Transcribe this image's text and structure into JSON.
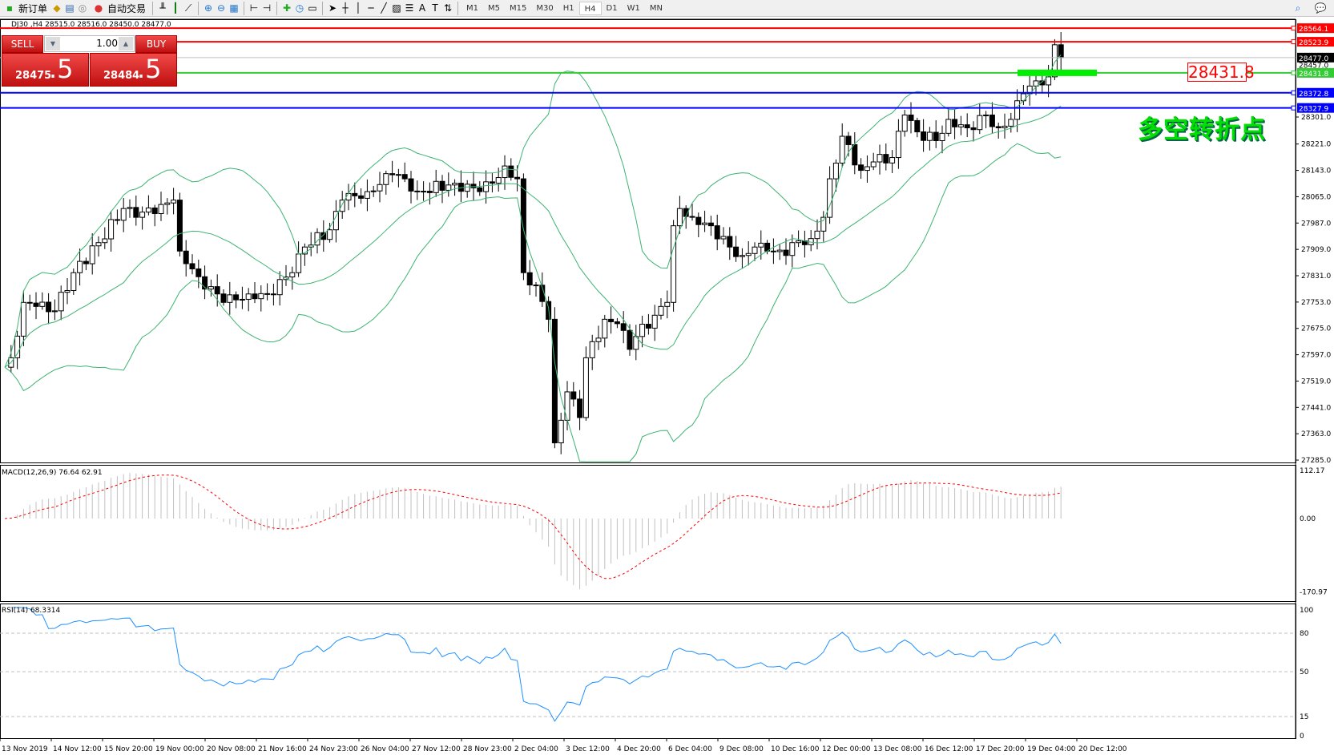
{
  "toolbar": {
    "new_order": "新订单",
    "auto_trading": "自动交易",
    "timeframes": [
      "M1",
      "M5",
      "M15",
      "M30",
      "H1",
      "H4",
      "D1",
      "W1",
      "MN"
    ],
    "active_timeframe": "H4"
  },
  "chart": {
    "title": "DJ30 ,H4  28515.0 28516.0 28450.0 28477.0",
    "one_click": {
      "sell": "SELL",
      "buy": "BUY",
      "lot": "1.00",
      "sell_big": "28475",
      "sell_frac": ".5",
      "buy_big": "28484",
      "buy_frac": ".5"
    },
    "annotation_label": "28431.8",
    "annotation_text": "多空转折点",
    "price_axis": [
      "28301.0",
      "28221.0",
      "28143.0",
      "28065.0",
      "27987.0",
      "27909.0",
      "27831.0",
      "27753.0",
      "27675.0",
      "27597.0",
      "27519.0",
      "27441.0",
      "27363.0",
      "27285.0"
    ],
    "price_range": [
      27285,
      28564.1
    ],
    "lines": [
      {
        "price": 28564.1,
        "label": "28564.1",
        "color": "#ff0000"
      },
      {
        "price": 28523.9,
        "label": "28523.9",
        "color": "#ff0000"
      },
      {
        "price": 28477.0,
        "label": "28477.0",
        "color": "#000000"
      },
      {
        "price": 28431.8,
        "label": "28431.8",
        "color": "#33cc33"
      },
      {
        "price": 28372.8,
        "label": "28372.8",
        "color": "#0000ff"
      },
      {
        "price": 28327.9,
        "label": "28327.9",
        "color": "#0000ff"
      }
    ],
    "extra_axis_label": "28457.0",
    "close_path": [
      [
        0,
        27560
      ],
      [
        1,
        27588
      ],
      [
        3,
        27752
      ],
      [
        5,
        27740
      ],
      [
        8,
        27727
      ],
      [
        11,
        27840
      ],
      [
        15,
        27929
      ],
      [
        19,
        28030
      ],
      [
        21,
        28004
      ],
      [
        25,
        28042
      ],
      [
        27,
        28055
      ],
      [
        28,
        27904
      ],
      [
        31,
        27828
      ],
      [
        35,
        27752
      ],
      [
        39,
        27777
      ],
      [
        42,
        27777
      ],
      [
        46,
        27840
      ],
      [
        48,
        27916
      ],
      [
        52,
        27967
      ],
      [
        54,
        28055
      ],
      [
        58,
        28080
      ],
      [
        62,
        28130
      ],
      [
        64,
        28118
      ],
      [
        66,
        28080
      ],
      [
        72,
        28105
      ],
      [
        76,
        28080
      ],
      [
        78,
        28105
      ],
      [
        80,
        28156
      ],
      [
        82,
        28118
      ],
      [
        83,
        27840
      ],
      [
        85,
        27803
      ],
      [
        87,
        27702
      ],
      [
        88,
        27336
      ],
      [
        90,
        27487
      ],
      [
        92,
        27411
      ],
      [
        93,
        27588
      ],
      [
        96,
        27702
      ],
      [
        98,
        27689
      ],
      [
        100,
        27613
      ],
      [
        101,
        27651
      ],
      [
        104,
        27714
      ],
      [
        106,
        27752
      ],
      [
        107,
        27979
      ],
      [
        108,
        28030
      ],
      [
        110,
        28004
      ],
      [
        113,
        27979
      ],
      [
        116,
        27916
      ],
      [
        118,
        27891
      ],
      [
        120,
        27916
      ],
      [
        122,
        27904
      ],
      [
        125,
        27891
      ],
      [
        126,
        27929
      ],
      [
        129,
        27941
      ],
      [
        131,
        28004
      ],
      [
        132,
        28118
      ],
      [
        134,
        28244
      ],
      [
        137,
        28143
      ],
      [
        139,
        28168
      ],
      [
        142,
        28181
      ],
      [
        144,
        28307
      ],
      [
        146,
        28257
      ],
      [
        149,
        28231
      ],
      [
        151,
        28294
      ],
      [
        154,
        28269
      ],
      [
        157,
        28307
      ],
      [
        159,
        28269
      ],
      [
        161,
        28294
      ],
      [
        163,
        28370
      ],
      [
        165,
        28408
      ],
      [
        167,
        28420
      ],
      [
        168,
        28515
      ],
      [
        169,
        28477
      ]
    ],
    "colors": {
      "bands": "#3cb371",
      "bull": "#ffffff",
      "bear": "#000000"
    }
  },
  "macd": {
    "label": "MACD(12,26,9) 76.64 62.91",
    "axis": [
      "112.17",
      "0.00",
      "-170.97"
    ],
    "range": [
      -170.97,
      112.17
    ]
  },
  "rsi": {
    "label": "RSI(14) 68.3314",
    "axis": [
      "100",
      "80",
      "50",
      "15",
      "0"
    ],
    "levels": [
      80,
      50,
      15
    ]
  },
  "time_axis": [
    "13 Nov 2019",
    "14 Nov 12:00",
    "15 Nov 20:00",
    "19 Nov 00:00",
    "20 Nov 08:00",
    "21 Nov 16:00",
    "24 Nov 23:00",
    "26 Nov 04:00",
    "27 Nov 12:00",
    "28 Nov 23:00",
    "2 Dec 04:00",
    "3 Dec 12:00",
    "4 Dec 20:00",
    "6 Dec 04:00",
    "9 Dec 08:00",
    "10 Dec 16:00",
    "12 Dec 00:00",
    "13 Dec 08:00",
    "16 Dec 12:00",
    "17 Dec 20:00",
    "19 Dec 04:00",
    "20 Dec 12:00"
  ]
}
